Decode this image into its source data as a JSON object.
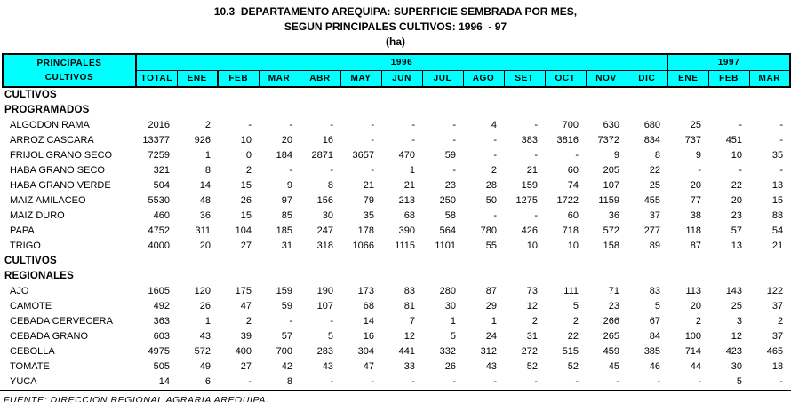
{
  "title": {
    "line1": "10.3  DEPARTAMENTO AREQUIPA: SUPERFICIE SEMBRADA POR MES,",
    "line2": "SEGUN PRINCIPALES CULTIVOS: 1996  - 97",
    "line3": "(ha)"
  },
  "colors": {
    "header_bg": "#00FFFF",
    "border": "#000000",
    "text": "#000000"
  },
  "table": {
    "row_header_lines": [
      "PRINCIPALES",
      "CULTIVOS"
    ],
    "year_groups": [
      {
        "label": "1996",
        "span": 13
      },
      {
        "label": "1997",
        "span": 3
      }
    ],
    "columns": [
      "TOTAL",
      "ENE",
      "FEB",
      "MAR",
      "ABR",
      "MAY",
      "JUN",
      "JUL",
      "AGO",
      "SET",
      "OCT",
      "NOV",
      "DIC",
      "ENE",
      "FEB",
      "MAR"
    ],
    "sections": [
      {
        "label_lines": [
          "CULTIVOS",
          "PROGRAMADOS"
        ],
        "rows": [
          {
            "name": "ALGODON RAMA",
            "values": [
              "2016",
              "2",
              "-",
              "-",
              "-",
              "-",
              "-",
              "-",
              "4",
              "-",
              "700",
              "630",
              "680",
              "25",
              "-",
              "-"
            ]
          },
          {
            "name": "ARROZ CASCARA",
            "values": [
              "13377",
              "926",
              "10",
              "20",
              "16",
              "-",
              "-",
              "-",
              "-",
              "383",
              "3816",
              "7372",
              "834",
              "737",
              "451",
              "-"
            ]
          },
          {
            "name": "FRIJOL GRANO SECO",
            "values": [
              "7259",
              "1",
              "0",
              "184",
              "2871",
              "3657",
              "470",
              "59",
              "-",
              "-",
              "-",
              "9",
              "8",
              "9",
              "10",
              "35"
            ]
          },
          {
            "name": "HABA GRANO SECO",
            "values": [
              "321",
              "8",
              "2",
              "-",
              "-",
              "-",
              "1",
              "-",
              "2",
              "21",
              "60",
              "205",
              "22",
              "-",
              "-",
              "-"
            ]
          },
          {
            "name": "HABA GRANO VERDE",
            "values": [
              "504",
              "14",
              "15",
              "9",
              "8",
              "21",
              "21",
              "23",
              "28",
              "159",
              "74",
              "107",
              "25",
              "20",
              "22",
              "13"
            ]
          },
          {
            "name": "MAIZ AMILACEO",
            "values": [
              "5530",
              "48",
              "26",
              "97",
              "156",
              "79",
              "213",
              "250",
              "50",
              "1275",
              "1722",
              "1159",
              "455",
              "77",
              "20",
              "15"
            ]
          },
          {
            "name": "MAIZ DURO",
            "values": [
              "460",
              "36",
              "15",
              "85",
              "30",
              "35",
              "68",
              "58",
              "-",
              "-",
              "60",
              "36",
              "37",
              "38",
              "23",
              "88"
            ]
          },
          {
            "name": "PAPA",
            "values": [
              "4752",
              "311",
              "104",
              "185",
              "247",
              "178",
              "390",
              "564",
              "780",
              "426",
              "718",
              "572",
              "277",
              "118",
              "57",
              "54"
            ]
          },
          {
            "name": "TRIGO",
            "values": [
              "4000",
              "20",
              "27",
              "31",
              "318",
              "1066",
              "1115",
              "1101",
              "55",
              "10",
              "10",
              "158",
              "89",
              "87",
              "13",
              "21"
            ]
          }
        ]
      },
      {
        "label_lines": [
          "CULTIVOS",
          "REGIONALES"
        ],
        "rows": [
          {
            "name": "AJO",
            "values": [
              "1605",
              "120",
              "175",
              "159",
              "190",
              "173",
              "83",
              "280",
              "87",
              "73",
              "111",
              "71",
              "83",
              "113",
              "143",
              "122"
            ]
          },
          {
            "name": "CAMOTE",
            "values": [
              "492",
              "26",
              "47",
              "59",
              "107",
              "68",
              "81",
              "30",
              "29",
              "12",
              "5",
              "23",
              "5",
              "20",
              "25",
              "37"
            ]
          },
          {
            "name": "CEBADA CERVECERA",
            "values": [
              "363",
              "1",
              "2",
              "-",
              "-",
              "14",
              "7",
              "1",
              "1",
              "2",
              "2",
              "266",
              "67",
              "2",
              "3",
              "2"
            ]
          },
          {
            "name": "CEBADA GRANO",
            "values": [
              "603",
              "43",
              "39",
              "57",
              "5",
              "16",
              "12",
              "5",
              "24",
              "31",
              "22",
              "265",
              "84",
              "100",
              "12",
              "37"
            ]
          },
          {
            "name": "CEBOLLA",
            "values": [
              "4975",
              "572",
              "400",
              "700",
              "283",
              "304",
              "441",
              "332",
              "312",
              "272",
              "515",
              "459",
              "385",
              "714",
              "423",
              "465"
            ]
          },
          {
            "name": "TOMATE",
            "values": [
              "505",
              "49",
              "27",
              "42",
              "43",
              "47",
              "33",
              "26",
              "43",
              "52",
              "52",
              "45",
              "46",
              "44",
              "30",
              "18"
            ]
          },
          {
            "name": "YUCA",
            "values": [
              "14",
              "6",
              "-",
              "8",
              "-",
              "-",
              "-",
              "-",
              "-",
              "-",
              "-",
              "-",
              "-",
              "-",
              "5",
              "-"
            ]
          }
        ]
      }
    ]
  },
  "footer": {
    "source": "FUENTE: DIRECCION REGIONAL AGRARIA AREQUIPA."
  }
}
